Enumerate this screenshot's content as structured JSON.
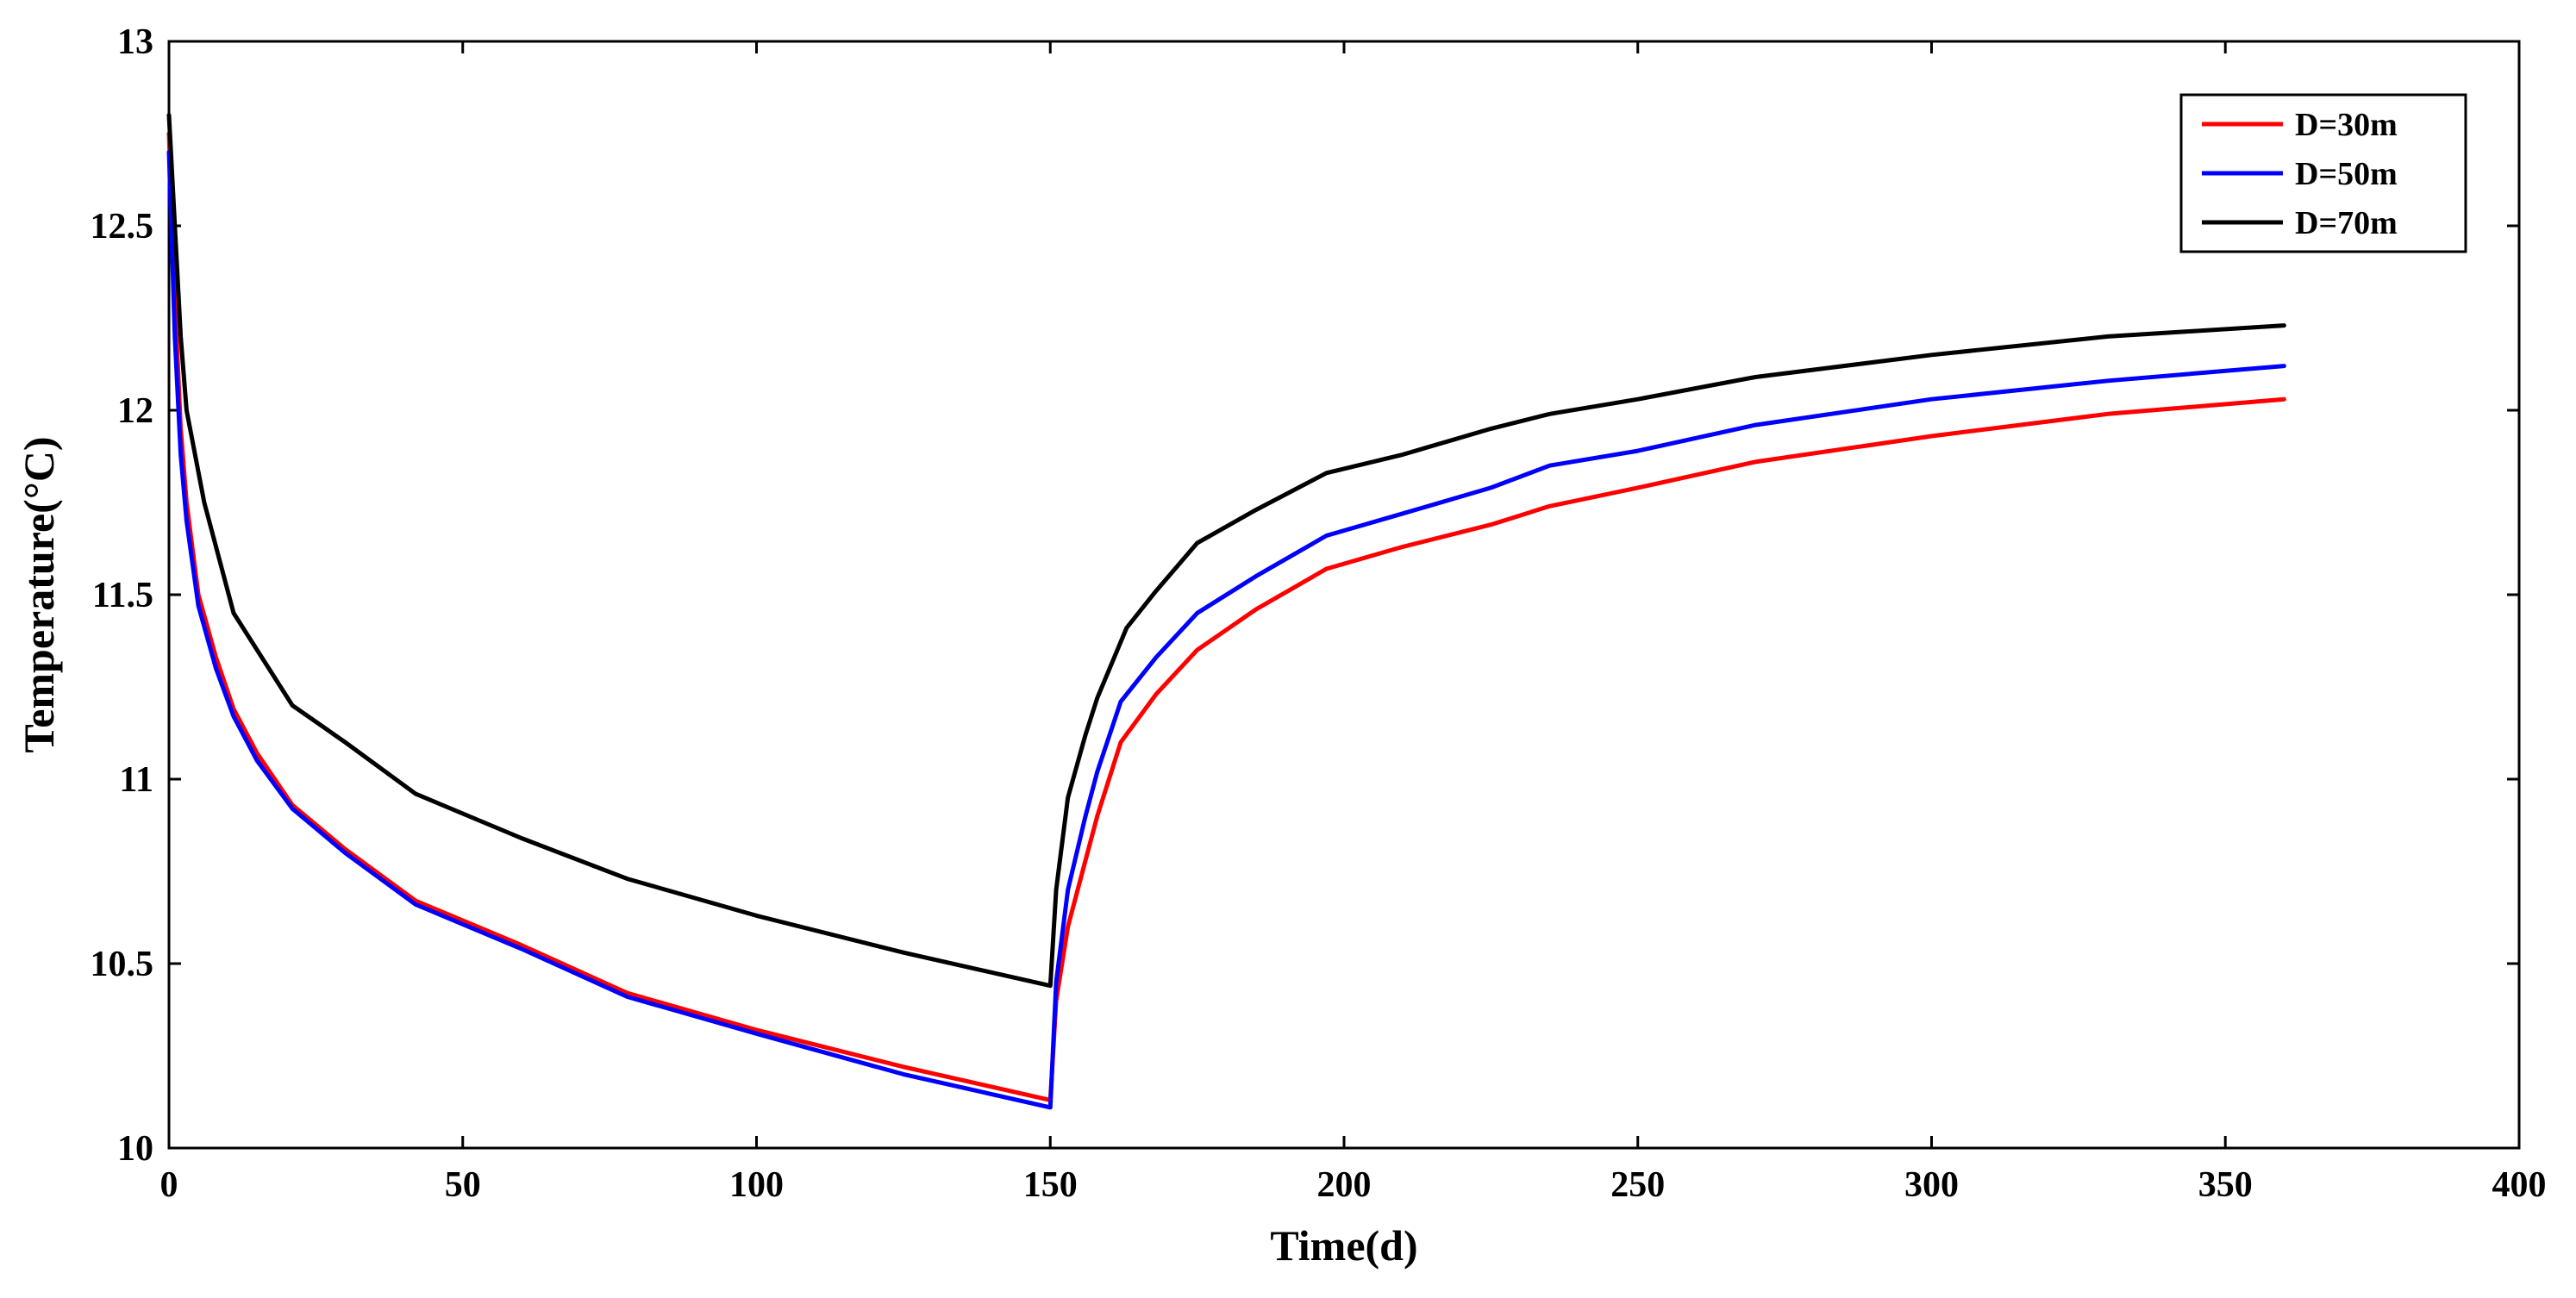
{
  "chart_data": {
    "type": "line",
    "xlabel": "Time(d)",
    "ylabel": "Temperature(°C)",
    "xlim": [
      0,
      400
    ],
    "ylim": [
      10,
      13
    ],
    "xticks": [
      0,
      50,
      100,
      150,
      200,
      250,
      300,
      350,
      400
    ],
    "yticks": [
      10,
      10.5,
      11,
      11.5,
      12,
      12.5,
      13
    ],
    "grid": false,
    "legend_position": "top-right",
    "series": [
      {
        "name": "D=30m",
        "color": "#ff0000",
        "points": [
          [
            0,
            12.75
          ],
          [
            1,
            12.3
          ],
          [
            2,
            11.95
          ],
          [
            3,
            11.75
          ],
          [
            5,
            11.5
          ],
          [
            8,
            11.33
          ],
          [
            11,
            11.19
          ],
          [
            15,
            11.07
          ],
          [
            21,
            10.93
          ],
          [
            30,
            10.81
          ],
          [
            42,
            10.67
          ],
          [
            60,
            10.55
          ],
          [
            78,
            10.42
          ],
          [
            100,
            10.32
          ],
          [
            125,
            10.22
          ],
          [
            150,
            10.13
          ],
          [
            151,
            10.4
          ],
          [
            153,
            10.6
          ],
          [
            156,
            10.78
          ],
          [
            158,
            10.9
          ],
          [
            162,
            11.1
          ],
          [
            168,
            11.23
          ],
          [
            175,
            11.35
          ],
          [
            185,
            11.46
          ],
          [
            197,
            11.57
          ],
          [
            210,
            11.63
          ],
          [
            225,
            11.69
          ],
          [
            235,
            11.74
          ],
          [
            250,
            11.79
          ],
          [
            270,
            11.86
          ],
          [
            300,
            11.93
          ],
          [
            330,
            11.99
          ],
          [
            360,
            12.03
          ]
        ]
      },
      {
        "name": "D=50m",
        "color": "#0000ff",
        "points": [
          [
            0,
            12.7
          ],
          [
            1,
            12.2
          ],
          [
            2,
            11.88
          ],
          [
            3,
            11.7
          ],
          [
            5,
            11.47
          ],
          [
            8,
            11.3
          ],
          [
            11,
            11.17
          ],
          [
            15,
            11.05
          ],
          [
            21,
            10.92
          ],
          [
            30,
            10.8
          ],
          [
            42,
            10.66
          ],
          [
            60,
            10.54
          ],
          [
            78,
            10.41
          ],
          [
            100,
            10.31
          ],
          [
            125,
            10.2
          ],
          [
            150,
            10.11
          ],
          [
            151,
            10.45
          ],
          [
            153,
            10.7
          ],
          [
            156,
            10.9
          ],
          [
            158,
            11.02
          ],
          [
            162,
            11.21
          ],
          [
            168,
            11.33
          ],
          [
            175,
            11.45
          ],
          [
            185,
            11.55
          ],
          [
            197,
            11.66
          ],
          [
            210,
            11.72
          ],
          [
            225,
            11.79
          ],
          [
            235,
            11.85
          ],
          [
            250,
            11.89
          ],
          [
            270,
            11.96
          ],
          [
            300,
            12.03
          ],
          [
            330,
            12.08
          ],
          [
            360,
            12.12
          ]
        ]
      },
      {
        "name": "D=70m",
        "color": "#000000",
        "points": [
          [
            0,
            12.8
          ],
          [
            1,
            12.5
          ],
          [
            2,
            12.2
          ],
          [
            3,
            12.0
          ],
          [
            6,
            11.75
          ],
          [
            11,
            11.45
          ],
          [
            21,
            11.2
          ],
          [
            30,
            11.1
          ],
          [
            42,
            10.96
          ],
          [
            60,
            10.84
          ],
          [
            78,
            10.73
          ],
          [
            100,
            10.63
          ],
          [
            125,
            10.53
          ],
          [
            150,
            10.44
          ],
          [
            151,
            10.7
          ],
          [
            153,
            10.95
          ],
          [
            156,
            11.12
          ],
          [
            158,
            11.22
          ],
          [
            163,
            11.41
          ],
          [
            168,
            11.51
          ],
          [
            175,
            11.64
          ],
          [
            185,
            11.73
          ],
          [
            197,
            11.83
          ],
          [
            210,
            11.88
          ],
          [
            225,
            11.95
          ],
          [
            235,
            11.99
          ],
          [
            250,
            12.03
          ],
          [
            270,
            12.09
          ],
          [
            300,
            12.15
          ],
          [
            330,
            12.2
          ],
          [
            360,
            12.23
          ]
        ]
      }
    ]
  }
}
